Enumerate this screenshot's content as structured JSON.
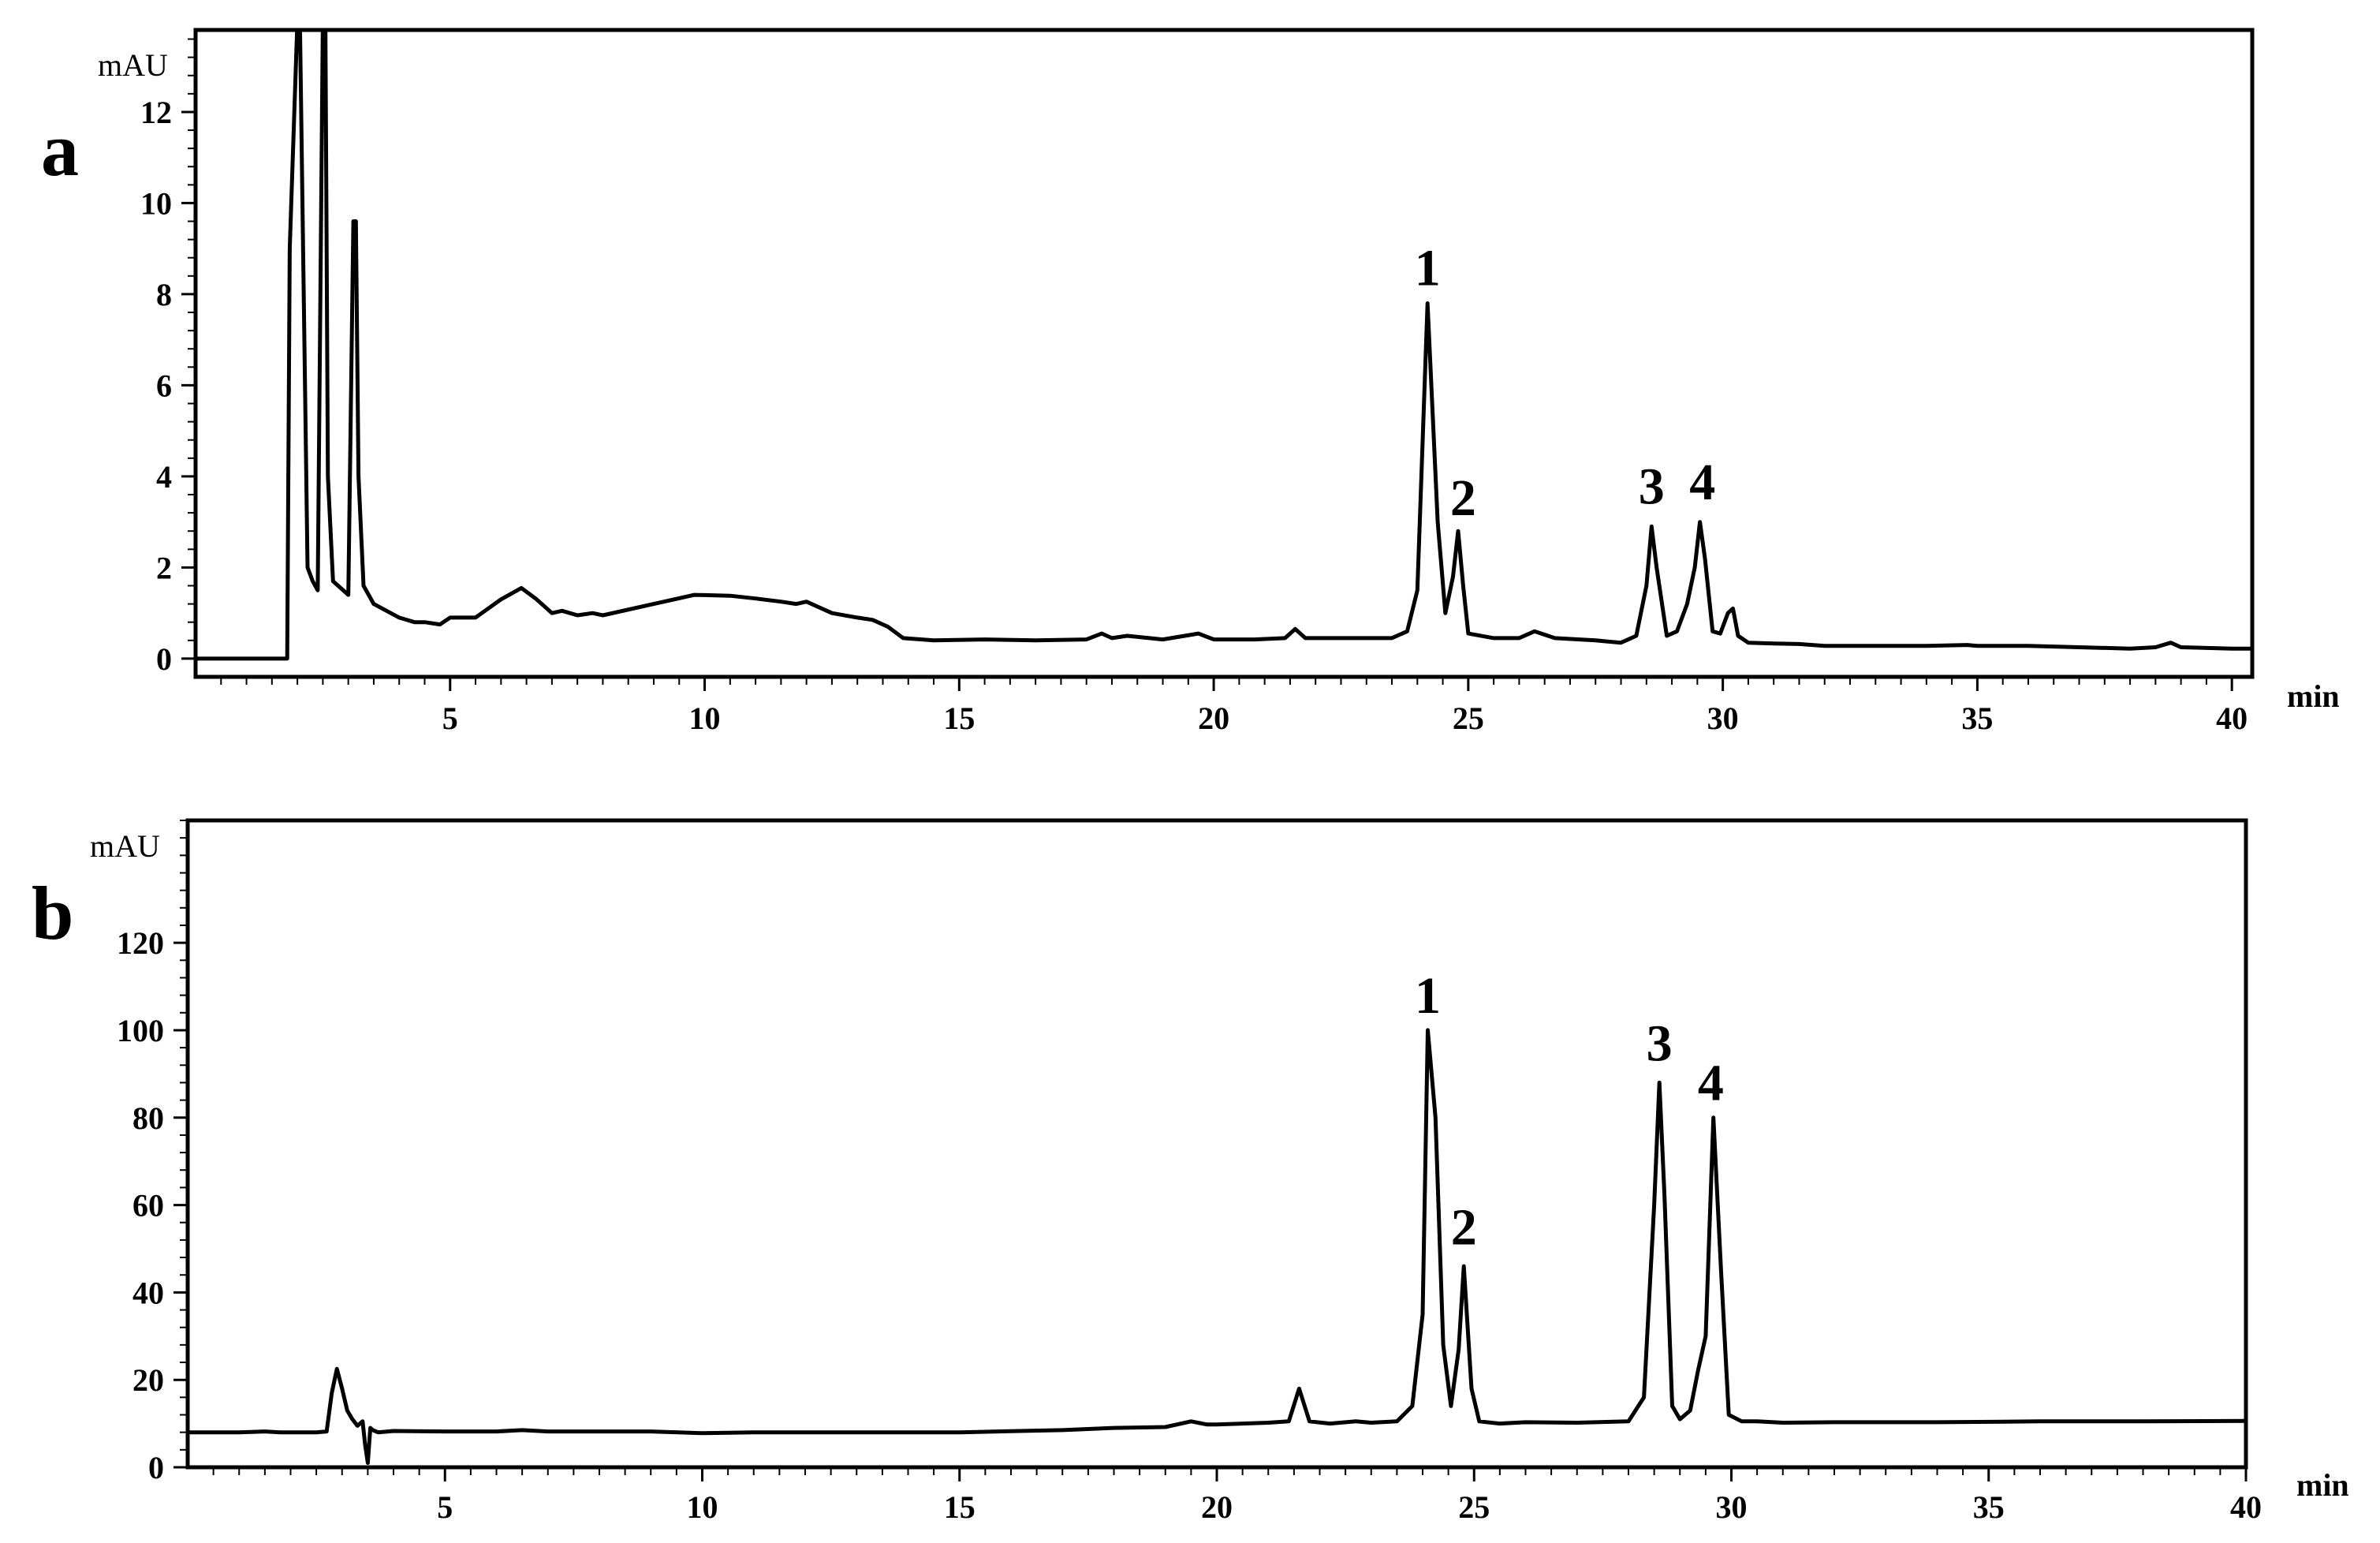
{
  "chart_data": [
    {
      "type": "line",
      "panel_label": "a",
      "ylabel": "mAU",
      "xunit": "min",
      "xlim": [
        0,
        40.4
      ],
      "ylim": [
        -0.4,
        13.8
      ],
      "xticks": [
        5,
        10,
        15,
        20,
        25,
        30,
        35,
        40
      ],
      "yticks": [
        0,
        2,
        4,
        6,
        8,
        10,
        12
      ],
      "grid": false,
      "peak_labels": [
        {
          "text": "1",
          "x": 24.2,
          "y": 8.2
        },
        {
          "text": "2",
          "x": 24.9,
          "y": 3.15
        },
        {
          "text": "3",
          "x": 28.6,
          "y": 3.4
        },
        {
          "text": "4",
          "x": 29.6,
          "y": 3.5
        }
      ],
      "series": [
        {
          "x": [
            0.0,
            1.8,
            1.85,
            2.0,
            2.05,
            2.2,
            2.3,
            2.4,
            2.5,
            2.55,
            2.6,
            2.7,
            2.8,
            3.0,
            3.1,
            3.15,
            3.2,
            3.3,
            3.5,
            4.0,
            4.3,
            4.5,
            4.8,
            5.0,
            5.5,
            6.0,
            6.4,
            6.7,
            7.0,
            7.2,
            7.5,
            7.8,
            8.0,
            9.0,
            9.8,
            10.5,
            11.0,
            11.5,
            11.8,
            12.0,
            12.5,
            13.0,
            13.3,
            13.6,
            13.9,
            14.5,
            15.5,
            16.5,
            17.5,
            17.8,
            18.0,
            18.3,
            19.0,
            19.7,
            20.0,
            20.8,
            21.4,
            21.6,
            21.8,
            22.5,
            23.0,
            23.5,
            23.8,
            24.0,
            24.2,
            24.4,
            24.55,
            24.7,
            24.8,
            24.9,
            25.0,
            25.5,
            26.0,
            26.3,
            26.7,
            27.5,
            28.0,
            28.3,
            28.5,
            28.6,
            28.7,
            28.9,
            29.1,
            29.3,
            29.45,
            29.55,
            29.65,
            29.8,
            29.95,
            30.1,
            30.2,
            30.3,
            30.5,
            31.0,
            31.5,
            32.0,
            34.0,
            34.8,
            35.0,
            36.0,
            37.0,
            38.0,
            38.5,
            38.8,
            39.0,
            40.0,
            40.4
          ],
          "y": [
            0.0,
            0.0,
            9.0,
            14.0,
            14.0,
            2.0,
            1.7,
            1.5,
            14.0,
            14.0,
            4.0,
            1.7,
            1.6,
            1.4,
            9.6,
            9.6,
            4.0,
            1.6,
            1.2,
            0.9,
            0.8,
            0.8,
            0.75,
            0.9,
            0.9,
            1.3,
            1.55,
            1.3,
            1.0,
            1.05,
            0.95,
            1.0,
            0.95,
            1.2,
            1.4,
            1.38,
            1.32,
            1.25,
            1.2,
            1.25,
            1.0,
            0.9,
            0.85,
            0.7,
            0.45,
            0.4,
            0.42,
            0.4,
            0.42,
            0.55,
            0.45,
            0.5,
            0.42,
            0.55,
            0.42,
            0.42,
            0.45,
            0.65,
            0.45,
            0.45,
            0.45,
            0.45,
            0.6,
            1.5,
            7.8,
            3.0,
            1.0,
            1.8,
            2.8,
            1.6,
            0.55,
            0.45,
            0.45,
            0.6,
            0.45,
            0.4,
            0.35,
            0.5,
            1.6,
            2.9,
            2.0,
            0.5,
            0.6,
            1.2,
            2.0,
            3.0,
            2.2,
            0.6,
            0.55,
            1.0,
            1.1,
            0.5,
            0.35,
            0.33,
            0.32,
            0.28,
            0.28,
            0.3,
            0.28,
            0.28,
            0.25,
            0.22,
            0.25,
            0.35,
            0.25,
            0.22,
            0.22
          ]
        }
      ]
    },
    {
      "type": "line",
      "panel_label": "b",
      "ylabel": "mAU",
      "xunit": "min",
      "xlim": [
        0,
        40.0
      ],
      "ylim": [
        0,
        148
      ],
      "xticks": [
        5,
        10,
        15,
        20,
        25,
        30,
        35,
        40
      ],
      "yticks": [
        0,
        20,
        40,
        60,
        80,
        100,
        120
      ],
      "grid": false,
      "peak_labels": [
        {
          "text": "1",
          "x": 24.1,
          "y": 104
        },
        {
          "text": "2",
          "x": 24.8,
          "y": 51
        },
        {
          "text": "3",
          "x": 28.6,
          "y": 93
        },
        {
          "text": "4",
          "x": 29.6,
          "y": 84
        }
      ],
      "series": [
        {
          "x": [
            0.0,
            1.0,
            1.5,
            1.8,
            2.0,
            2.5,
            2.7,
            2.8,
            2.9,
            3.0,
            3.1,
            3.2,
            3.3,
            3.4,
            3.45,
            3.5,
            3.55,
            3.6,
            3.7,
            4.0,
            5.0,
            6.0,
            6.5,
            7.0,
            9.0,
            10.0,
            11.0,
            12.0,
            13.0,
            15.0,
            17.0,
            18.0,
            19.0,
            19.5,
            19.8,
            20.0,
            20.5,
            21.0,
            21.4,
            21.6,
            21.8,
            22.2,
            22.7,
            23.0,
            23.5,
            23.8,
            24.0,
            24.1,
            24.25,
            24.4,
            24.55,
            24.7,
            24.8,
            24.95,
            25.1,
            25.5,
            26.0,
            27.0,
            28.0,
            28.3,
            28.5,
            28.6,
            28.7,
            28.85,
            29.0,
            29.2,
            29.35,
            29.5,
            29.65,
            29.8,
            29.95,
            30.2,
            30.5,
            31.0,
            32.0,
            34.0,
            36.0,
            38.0,
            40.0
          ],
          "y": [
            8.0,
            8.0,
            8.2,
            8.0,
            8.0,
            8.0,
            8.2,
            17.0,
            22.5,
            18.0,
            13.0,
            11.0,
            9.5,
            10.5,
            5.0,
            1.0,
            9.0,
            8.5,
            8.0,
            8.3,
            8.2,
            8.2,
            8.5,
            8.2,
            8.2,
            7.8,
            8.0,
            8.0,
            8.0,
            8.0,
            8.5,
            9.0,
            9.2,
            10.5,
            9.8,
            9.8,
            10.0,
            10.2,
            10.5,
            18.0,
            10.5,
            10.0,
            10.5,
            10.2,
            10.5,
            14.0,
            35.0,
            100.0,
            80.0,
            28.0,
            14.0,
            27.0,
            46.0,
            18.0,
            10.5,
            10.0,
            10.3,
            10.2,
            10.5,
            16.0,
            60.0,
            88.0,
            62.0,
            14.0,
            11.0,
            13.0,
            22.0,
            30.0,
            80.0,
            45.0,
            12.0,
            10.5,
            10.5,
            10.2,
            10.3,
            10.3,
            10.5,
            10.5,
            10.6
          ]
        }
      ]
    }
  ]
}
